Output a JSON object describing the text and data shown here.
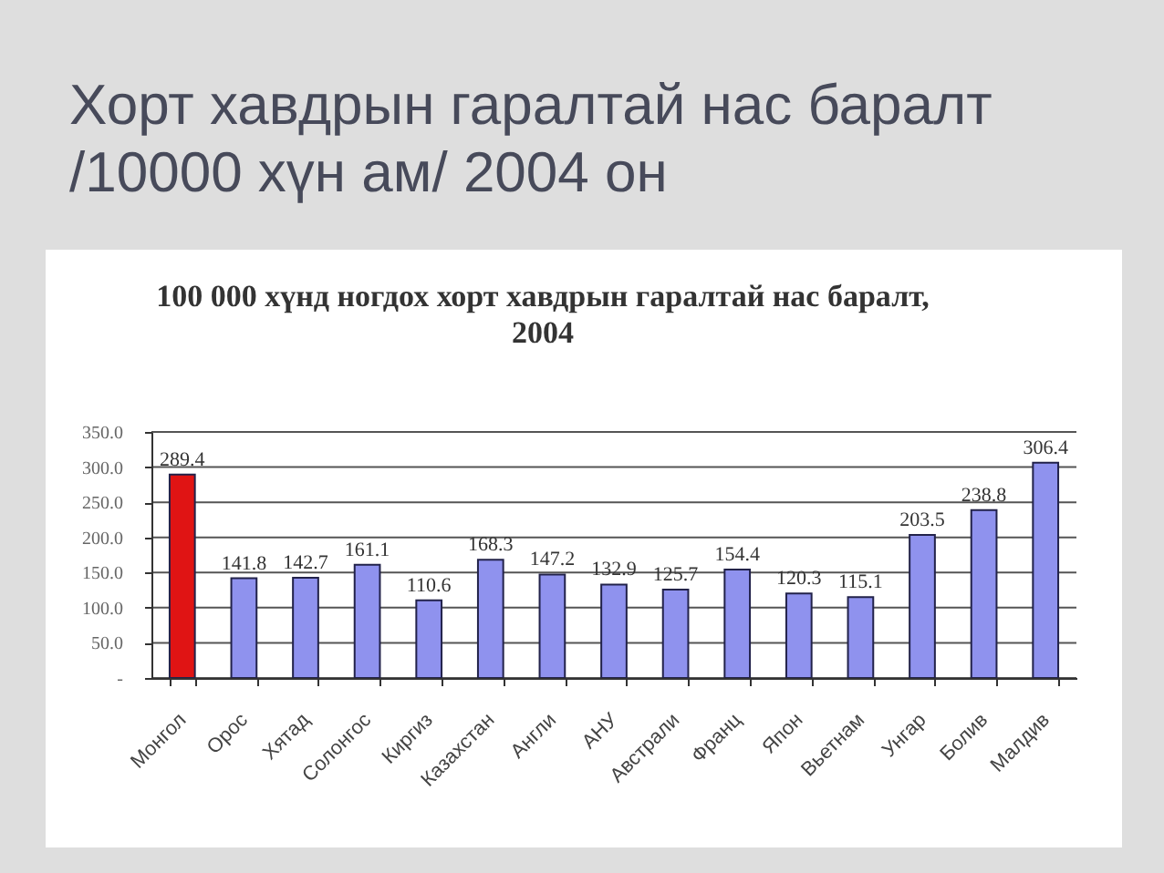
{
  "chart_data": {
    "type": "bar",
    "title": "Хорт хавдрын гаралтай нас баралт /10000 хүн ам/ 2004 он",
    "subtitle": "100 000 хүнд ногдох хорт хавдрын гаралтай нас баралт, 2004",
    "categories": [
      "Монгол",
      "Орос",
      "Хятад",
      "Солонгос",
      "Киргиз",
      "Казахстан",
      "Англи",
      "АНУ",
      "Австрали",
      "Франц",
      "Япон",
      "Вьетнам",
      "Унгар",
      "Болив",
      "Малдив"
    ],
    "values": [
      289.4,
      141.8,
      142.7,
      161.1,
      110.6,
      168.3,
      147.2,
      132.9,
      125.7,
      154.4,
      120.3,
      115.1,
      203.5,
      238.8,
      306.4
    ],
    "colors": [
      "#e01414",
      "#8f92ee",
      "#8f92ee",
      "#8f92ee",
      "#8f92ee",
      "#8f92ee",
      "#8f92ee",
      "#8f92ee",
      "#8f92ee",
      "#8f92ee",
      "#8f92ee",
      "#8f92ee",
      "#8f92ee",
      "#8f92ee",
      "#8f92ee"
    ],
    "ylim": [
      0,
      350
    ],
    "yticks": [
      {
        "value": 0,
        "label": "-"
      },
      {
        "value": 50,
        "label": "50.0"
      },
      {
        "value": 100,
        "label": "100.0"
      },
      {
        "value": 150,
        "label": "150.0"
      },
      {
        "value": 200,
        "label": "200.0"
      },
      {
        "value": 250,
        "label": "250.0"
      },
      {
        "value": 300,
        "label": "300.0"
      },
      {
        "value": 350,
        "label": "350.0"
      }
    ],
    "grid": "y",
    "data_labels": true
  }
}
